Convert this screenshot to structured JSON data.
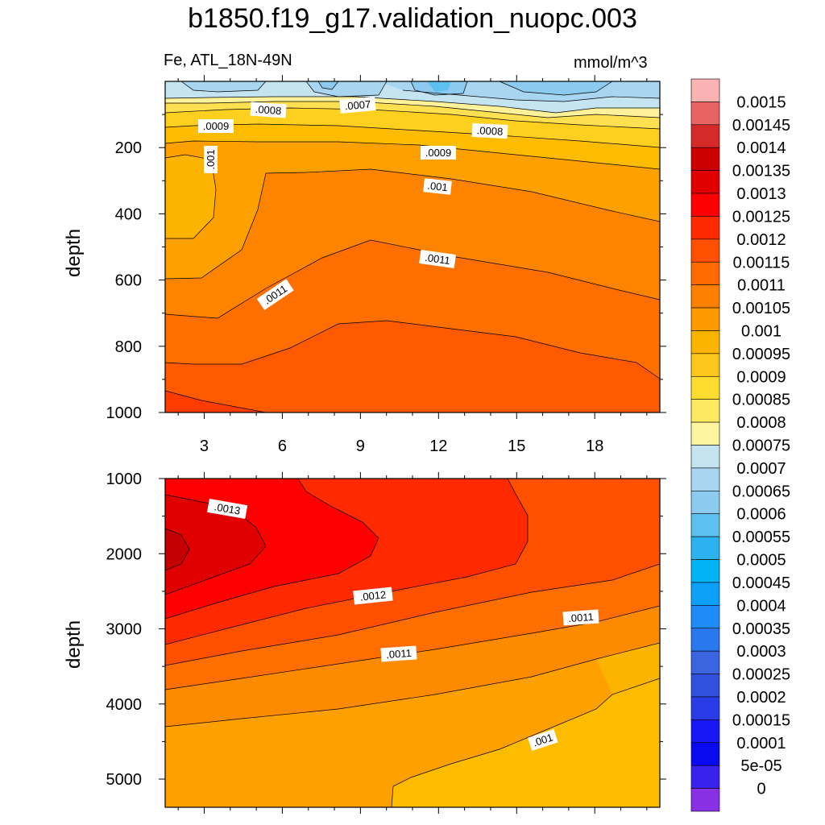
{
  "title": "b1850.f19_g17.validation_nuopc.003",
  "left_subtitle": "Fe, ATL_18N-49N",
  "right_subtitle": "mmol/m^3",
  "chart_data": [
    {
      "type": "heatmap",
      "panel": "upper",
      "ylabel": "depth",
      "xticks": [
        "3",
        "6",
        "9",
        "12",
        "15",
        "18"
      ],
      "yticks": [
        "200",
        "400",
        "600",
        "800",
        "1000"
      ],
      "x_range": [
        1.5,
        20.5
      ],
      "y_range": [
        0,
        1000
      ],
      "y_reversed": true,
      "contour_labels": [
        ".0007",
        ".0008",
        ".0009",
        ".001",
        ".0011",
        ".0009",
        ".0008",
        ".001",
        ".0011",
        ".0011"
      ]
    },
    {
      "type": "heatmap",
      "panel": "lower",
      "ylabel": "depth",
      "yticks": [
        "1000",
        "2000",
        "3000",
        "4000",
        "5000"
      ],
      "x_range": [
        1.5,
        20.5
      ],
      "y_range": [
        1000,
        5375
      ],
      "y_reversed": true,
      "contour_labels": [
        ".0013",
        ".0012",
        ".0011",
        ".0011",
        ".001"
      ]
    }
  ],
  "colorbar": {
    "labels": [
      "0.0015",
      "0.00145",
      "0.0014",
      "0.00135",
      "0.0013",
      "0.00125",
      "0.0012",
      "0.00115",
      "0.0011",
      "0.00105",
      "0.001",
      "0.00095",
      "0.0009",
      "0.00085",
      "0.0008",
      "0.00075",
      "0.0007",
      "0.00065",
      "0.0006",
      "0.00055",
      "0.0005",
      "0.00045",
      "0.0004",
      "0.00035",
      "0.0003",
      "0.00025",
      "0.0002",
      "0.00015",
      "0.0001",
      "5e-05",
      "0"
    ],
    "colors": [
      "#fbb2b2",
      "#e86464",
      "#d42a2a",
      "#cc0000",
      "#e00000",
      "#ff0000",
      "#ff2a00",
      "#ff5000",
      "#ff6a00",
      "#fe8000",
      "#fe9a00",
      "#fdb400",
      "#fdc61c",
      "#fedc30",
      "#feea60",
      "#fff5a0",
      "#c4e4f2",
      "#a8d6f0",
      "#8ccaf0",
      "#5ec0ee",
      "#2cb2ee",
      "#00b4f6",
      "#0ca0f8",
      "#1e8cf8",
      "#2a78ee",
      "#3a64e0",
      "#3250de",
      "#2a3ce8",
      "#1818f4",
      "#0a0af0",
      "#3a22ee",
      "#8a30e4"
    ]
  }
}
